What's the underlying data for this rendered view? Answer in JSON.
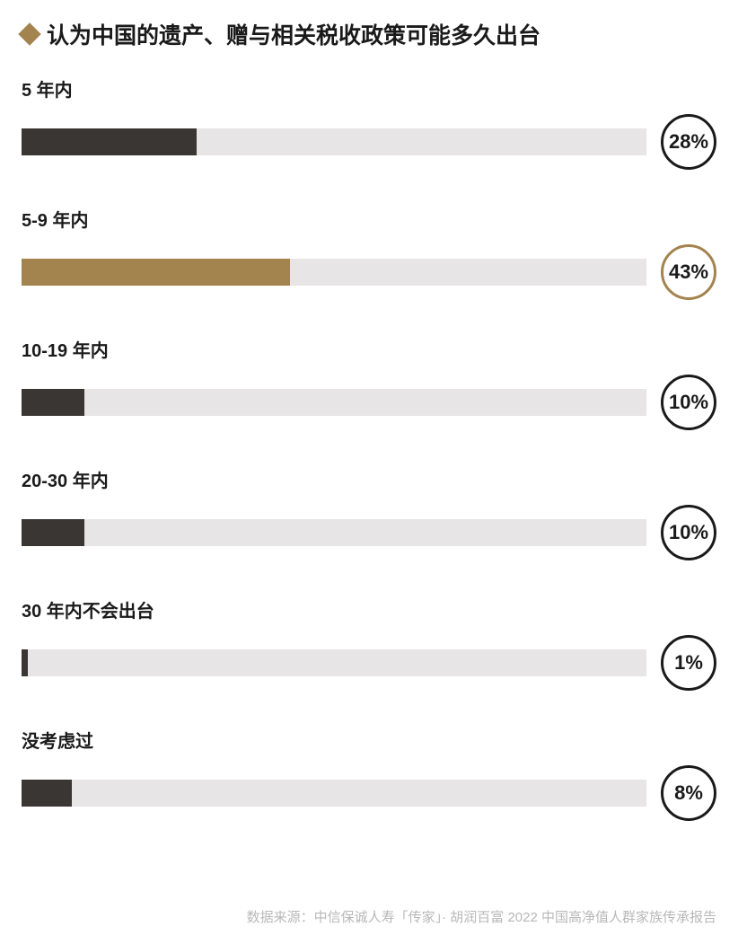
{
  "title": {
    "text": "认为中国的遗产、赠与相关税收政策可能多久出台",
    "fontsize": 25,
    "color": "#1a1a1a",
    "diamond_color": "#a3834e"
  },
  "chart": {
    "type": "bar",
    "track_color": "#e7e5e5",
    "track_height": 30,
    "label_fontsize": 20,
    "label_color": "#1a1a1a",
    "pct_fontsize": 22,
    "circle_border_default": "#1a1a1a",
    "circle_border_highlight": "#a3834e",
    "circle_border_width": 3,
    "bars": [
      {
        "label": "5 年内",
        "value": 28,
        "pct_text": "28%",
        "fill_color": "#3a3633",
        "highlight": false
      },
      {
        "label": "5-9 年内",
        "value": 43,
        "pct_text": "43%",
        "fill_color": "#a3834e",
        "highlight": true
      },
      {
        "label": "10-19 年内",
        "value": 10,
        "pct_text": "10%",
        "fill_color": "#3a3633",
        "highlight": false
      },
      {
        "label": "20-30 年内",
        "value": 10,
        "pct_text": "10%",
        "fill_color": "#3a3633",
        "highlight": false
      },
      {
        "label": "30 年内不会出台",
        "value": 1,
        "pct_text": "1%",
        "fill_color": "#3a3633",
        "highlight": false
      },
      {
        "label": "没考虑过",
        "value": 8,
        "pct_text": "8%",
        "fill_color": "#3a3633",
        "highlight": false
      }
    ]
  },
  "source": {
    "text": "数据来源：中信保诚人寿「传家」· 胡润百富 2022 中国高净值人群家族传承报告",
    "fontsize": 15,
    "color": "#b8b8b8"
  }
}
